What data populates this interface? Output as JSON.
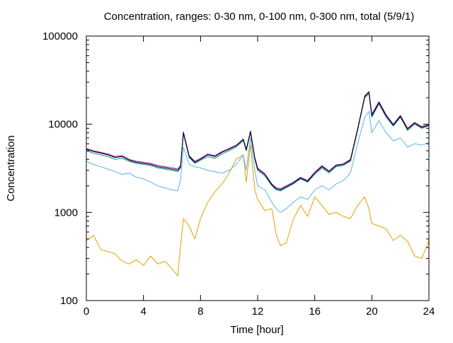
{
  "chart_data": {
    "type": "line",
    "title": "Concentration, ranges: 0-30 nm, 0-100 nm, 0-300 nm, total (5/9/1)",
    "xlabel": "Time [hour]",
    "ylabel": "Concentration",
    "xlim": [
      0,
      24
    ],
    "ylim": [
      100,
      100000
    ],
    "yscale": "log",
    "grid": false,
    "x_ticks": [
      0,
      4,
      8,
      12,
      16,
      20,
      24
    ],
    "x_tick_labels": [
      "0",
      "4",
      "8",
      "12",
      "16",
      "20",
      "24"
    ],
    "y_ticks": [
      100,
      1000,
      10000,
      100000
    ],
    "y_tick_labels": [
      "100",
      "1000",
      "10000",
      "100000"
    ],
    "series": [
      {
        "color": "#e69f00",
        "x": [
          0,
          0.5,
          1,
          1.5,
          2,
          2.5,
          3,
          3.5,
          4,
          4.5,
          5,
          5.5,
          6,
          6.4,
          6.6,
          6.8,
          7.2,
          7.6,
          8,
          8.5,
          9,
          9.5,
          10,
          10.5,
          11,
          11.2,
          11.5,
          11.8,
          12,
          12.5,
          13,
          13.3,
          13.6,
          14,
          14.5,
          15,
          15.5,
          16,
          16.5,
          17,
          17.5,
          18,
          18.5,
          19,
          19.5,
          19.8,
          20,
          20.5,
          21,
          21.5,
          22,
          22.5,
          23,
          23.5,
          24
        ],
        "y": [
          480,
          550,
          380,
          360,
          340,
          280,
          260,
          290,
          250,
          320,
          260,
          280,
          230,
          190,
          420,
          850,
          700,
          500,
          850,
          1300,
          1700,
          2100,
          2800,
          4000,
          4500,
          2200,
          5800,
          1800,
          1400,
          1050,
          1100,
          560,
          420,
          450,
          830,
          1200,
          900,
          1500,
          1200,
          950,
          1000,
          900,
          850,
          1200,
          1500,
          1100,
          750,
          700,
          650,
          480,
          550,
          470,
          320,
          300,
          480
        ]
      },
      {
        "color": "#56b4e9",
        "x": [
          0,
          0.5,
          1,
          1.5,
          2,
          2.5,
          3,
          3.5,
          4,
          4.5,
          5,
          5.5,
          6,
          6.4,
          6.6,
          6.8,
          7.2,
          7.6,
          8,
          8.5,
          9,
          9.5,
          10,
          10.5,
          11,
          11.2,
          11.5,
          11.8,
          12,
          12.5,
          13,
          13.3,
          13.6,
          14,
          14.5,
          15,
          15.5,
          16,
          16.5,
          17,
          17.5,
          18,
          18.5,
          19,
          19.5,
          19.8,
          20,
          20.5,
          21,
          21.5,
          22,
          22.5,
          23,
          23.5,
          24
        ],
        "y": [
          3800,
          3500,
          3300,
          3100,
          2900,
          2700,
          2800,
          2500,
          2400,
          2200,
          2000,
          1900,
          1800,
          1750,
          2300,
          5500,
          3500,
          3300,
          3200,
          3000,
          2900,
          2800,
          3000,
          3500,
          4500,
          3000,
          7000,
          3000,
          2000,
          1800,
          1300,
          1100,
          1000,
          1100,
          1300,
          1500,
          1400,
          1800,
          2000,
          1800,
          2100,
          2300,
          2800,
          6000,
          12000,
          14000,
          8000,
          11000,
          8000,
          6500,
          7000,
          5500,
          6000,
          5800,
          6200
        ]
      },
      {
        "color": "#009e73",
        "x": [
          0,
          0.5,
          1,
          1.5,
          2,
          2.5,
          3,
          3.5,
          4,
          4.5,
          5,
          5.5,
          6,
          6.4,
          6.6,
          6.8,
          7.2,
          7.6,
          8,
          8.5,
          9,
          9.5,
          10,
          10.5,
          11,
          11.2,
          11.5,
          11.8,
          12,
          12.5,
          13,
          13.3,
          13.6,
          14,
          14.5,
          15,
          15.5,
          16,
          16.5,
          17,
          17.5,
          18,
          18.5,
          19,
          19.5,
          19.8,
          20,
          20.5,
          21,
          21.5,
          22,
          22.5,
          23,
          23.5,
          24
        ],
        "y": [
          5000,
          4700,
          4500,
          4300,
          4000,
          4100,
          3800,
          3600,
          3500,
          3400,
          3200,
          3100,
          3000,
          2900,
          3200,
          7800,
          4200,
          3600,
          3900,
          4300,
          4100,
          4600,
          5000,
          5500,
          6500,
          5000,
          8000,
          4000,
          3000,
          2600,
          2000,
          1800,
          1750,
          1900,
          2100,
          2400,
          2200,
          2700,
          3200,
          2800,
          3300,
          3400,
          3800,
          8500,
          20000,
          22000,
          12000,
          17000,
          12000,
          9500,
          12000,
          8500,
          10000,
          9000,
          9600
        ]
      },
      {
        "color": "#9400d3",
        "x": [
          0,
          0.5,
          1,
          1.5,
          2,
          2.5,
          3,
          3.5,
          4,
          4.5,
          5,
          5.5,
          6,
          6.4,
          6.6,
          6.8,
          7.2,
          7.6,
          8,
          8.5,
          9,
          9.5,
          10,
          10.5,
          11,
          11.2,
          11.5,
          11.8,
          12,
          12.5,
          13,
          13.3,
          13.6,
          14,
          14.5,
          15,
          15.5,
          16,
          16.5,
          17,
          17.5,
          18,
          18.5,
          19,
          19.5,
          19.8,
          20,
          20.5,
          21,
          21.5,
          22,
          22.5,
          23,
          23.5,
          24
        ],
        "y": [
          5300,
          5000,
          4800,
          4600,
          4300,
          4400,
          4000,
          3800,
          3700,
          3600,
          3400,
          3300,
          3200,
          3100,
          3400,
          8200,
          4400,
          3800,
          4100,
          4600,
          4400,
          4900,
          5300,
          5800,
          6800,
          5200,
          8400,
          4200,
          3200,
          2750,
          2100,
          1900,
          1850,
          2000,
          2200,
          2500,
          2300,
          2850,
          3400,
          2950,
          3450,
          3550,
          4000,
          8900,
          21000,
          23500,
          13000,
          18000,
          12800,
          10000,
          12600,
          9000,
          10500,
          9400,
          10000
        ]
      },
      {
        "color": "#000000",
        "x": [
          0,
          0.5,
          1,
          1.5,
          2,
          2.5,
          3,
          3.5,
          4,
          4.5,
          5,
          5.5,
          6,
          6.4,
          6.6,
          6.8,
          7.2,
          7.6,
          8,
          8.5,
          9,
          9.5,
          10,
          10.5,
          11,
          11.2,
          11.5,
          11.8,
          12,
          12.5,
          13,
          13.3,
          13.6,
          14,
          14.5,
          15,
          15.5,
          16,
          16.5,
          17,
          17.5,
          18,
          18.5,
          19,
          19.5,
          19.8,
          20,
          20.5,
          21,
          21.5,
          22,
          22.5,
          23,
          23.5,
          24
        ],
        "y": [
          5200,
          4900,
          4700,
          4500,
          4200,
          4300,
          3900,
          3700,
          3600,
          3500,
          3300,
          3200,
          3100,
          3000,
          3300,
          8000,
          4300,
          3700,
          4000,
          4500,
          4300,
          4800,
          5200,
          5700,
          6700,
          5100,
          8300,
          4100,
          3100,
          2700,
          2050,
          1850,
          1800,
          1950,
          2150,
          2450,
          2250,
          2800,
          3300,
          2900,
          3400,
          3500,
          3900,
          8700,
          20500,
          23000,
          12500,
          17500,
          12500,
          9800,
          12300,
          8800,
          10300,
          9200,
          9800
        ]
      }
    ]
  }
}
